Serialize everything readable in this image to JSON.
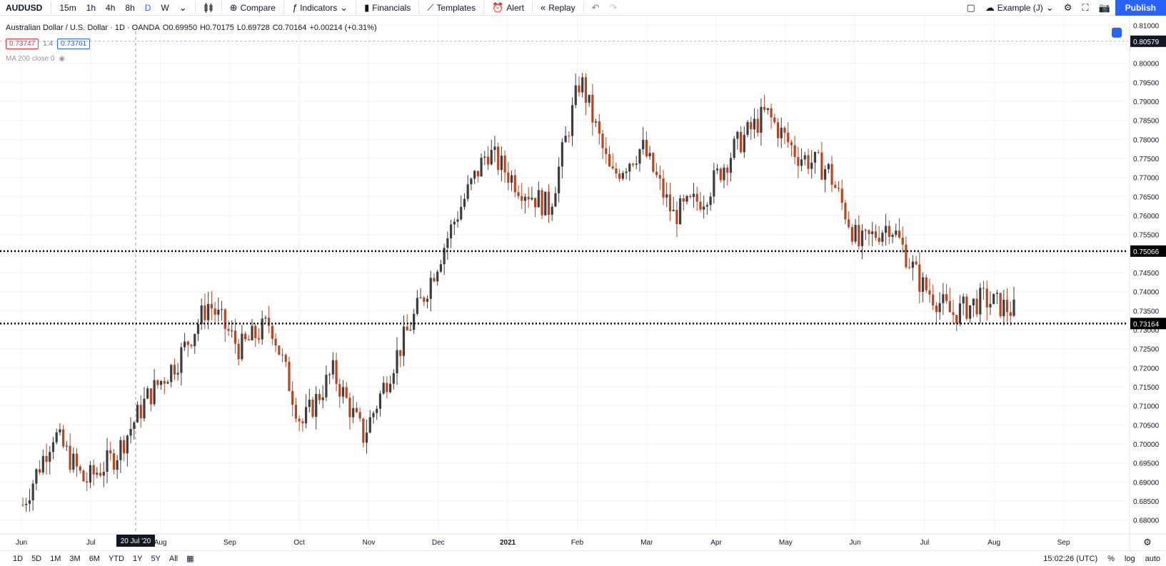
{
  "toolbar": {
    "symbol": "AUDUSD",
    "intervals": [
      "15m",
      "1h",
      "4h",
      "8h",
      "D",
      "W"
    ],
    "active_interval": "D",
    "compare_label": "Compare",
    "indicators_label": "Indicators",
    "financials_label": "Financials",
    "templates_label": "Templates",
    "alert_label": "Alert",
    "replay_label": "Replay",
    "layout_name": "Example (J)",
    "publish_label": "Publish"
  },
  "legend": {
    "title": "Australian Dollar / U.S. Dollar · 1D · OANDA",
    "open": "O0.69950",
    "high": "H0.70175",
    "low": "L0.69728",
    "close": "C0.70164",
    "change": "+0.00214 (+0.31%)",
    "sell_price": "0.73747",
    "spread": "1.4",
    "buy_price": "0.73761",
    "indicator": "MA 200 close 0"
  },
  "chart_data": {
    "type": "candlestick",
    "price_axis_labels": [
      "0.81000",
      "0.80500",
      "0.80000",
      "0.79500",
      "0.79000",
      "0.78500",
      "0.78000",
      "0.77500",
      "0.77000",
      "0.76500",
      "0.76000",
      "0.75500",
      "0.75000",
      "0.74500",
      "0.74000",
      "0.73500",
      "0.73000",
      "0.72500",
      "0.72000",
      "0.71500",
      "0.71000",
      "0.70500",
      "0.70000",
      "0.69500",
      "0.69000",
      "0.68500",
      "0.68000"
    ],
    "ylim": [
      0.6775,
      0.8125
    ],
    "time_axis_labels": [
      "Jun",
      "Jul",
      "Aug",
      "Sep",
      "Oct",
      "Nov",
      "Dec",
      "2021",
      "Feb",
      "Mar",
      "Apr",
      "May",
      "Jun",
      "Jul",
      "Aug",
      "Sep"
    ],
    "crosshair_date": "20 Jul '20",
    "horizontal_lines": [
      {
        "price": 0.75066,
        "label": "0.75066"
      },
      {
        "price": 0.73164,
        "label": "0.73164"
      }
    ],
    "top_price_label": "0.80579",
    "up_color": "#3d3d3d",
    "down_color": "#b5461f",
    "trend_keypoints": [
      {
        "date": "Jun '20",
        "price": 0.684
      },
      {
        "date": "Jun '20",
        "price": 0.703
      },
      {
        "date": "Jun '20",
        "price": 0.69
      },
      {
        "date": "Jul '20",
        "price": 0.697
      },
      {
        "date": "20 Jul '20",
        "price": 0.712
      },
      {
        "date": "Aug '20",
        "price": 0.722
      },
      {
        "date": "Sep '20",
        "price": 0.737
      },
      {
        "date": "Sep '20",
        "price": 0.725
      },
      {
        "date": "Sep '20",
        "price": 0.732
      },
      {
        "date": "Oct '20",
        "price": 0.705
      },
      {
        "date": "Oct '20",
        "price": 0.719
      },
      {
        "date": "Nov '20",
        "price": 0.702
      },
      {
        "date": "Nov '20",
        "price": 0.722
      },
      {
        "date": "Dec '20",
        "price": 0.74
      },
      {
        "date": "Dec '20",
        "price": 0.76
      },
      {
        "date": "Jan '21",
        "price": 0.777
      },
      {
        "date": "Jan '21",
        "price": 0.768
      },
      {
        "date": "Feb '21",
        "price": 0.762
      },
      {
        "date": "Feb '21",
        "price": 0.796
      },
      {
        "date": "Mar '21",
        "price": 0.77
      },
      {
        "date": "Mar '21",
        "price": 0.778
      },
      {
        "date": "Apr '21",
        "price": 0.76
      },
      {
        "date": "Apr '21",
        "price": 0.765
      },
      {
        "date": "May '21",
        "price": 0.778
      },
      {
        "date": "May '21",
        "price": 0.787
      },
      {
        "date": "Jun '21",
        "price": 0.776
      },
      {
        "date": "Jun '21",
        "price": 0.772
      },
      {
        "date": "Jul '21",
        "price": 0.752
      },
      {
        "date": "Jul '21",
        "price": 0.758
      },
      {
        "date": "Jul '21",
        "price": 0.742
      },
      {
        "date": "Aug '21",
        "price": 0.734
      },
      {
        "date": "Aug '21",
        "price": 0.738
      },
      {
        "date": "Aug '21",
        "price": 0.735
      }
    ]
  },
  "bottombar": {
    "ranges": [
      "1D",
      "5D",
      "1M",
      "3M",
      "6M",
      "YTD",
      "1Y",
      "5Y",
      "All"
    ],
    "time": "15:02:26 (UTC)",
    "percent_label": "%",
    "log_label": "log",
    "auto_label": "auto"
  },
  "colors": {
    "accent": "#2962ff",
    "grid": "#f0f3fa",
    "border": "#e0e3eb"
  }
}
